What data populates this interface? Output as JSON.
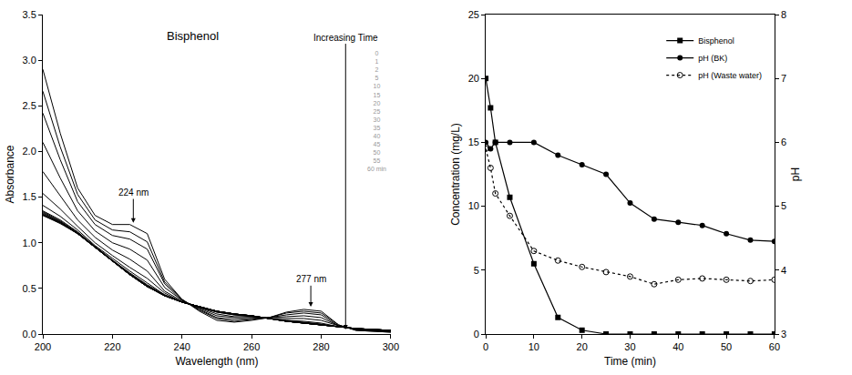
{
  "chart_data": [
    {
      "type": "line",
      "title": "Bisphenol",
      "x_label": "Wavelength (nm)",
      "y_label": "Absorbance",
      "x": [
        200,
        205,
        210,
        215,
        220,
        225,
        230,
        235,
        240,
        245,
        250,
        255,
        260,
        265,
        270,
        275,
        280,
        285,
        290,
        295,
        300
      ],
      "xlim": [
        200,
        300
      ],
      "xticks": [
        200,
        220,
        240,
        260,
        280,
        300
      ],
      "ylim": [
        0,
        3.5
      ],
      "yticks": [
        {
          "value": 0,
          "label": "0.0"
        },
        0.5,
        {
          "value": 1,
          "label": "1.0"
        },
        1.5,
        {
          "value": 2,
          "label": "2.0"
        },
        2.5,
        {
          "value": 3,
          "label": "3.0"
        },
        3.5
      ],
      "annotations": [
        {
          "text": "224 nm",
          "x": 226,
          "y": 1.22,
          "text_y": 1.55
        },
        {
          "text": "277 nm",
          "x": 277,
          "y": 0.3,
          "text_y": 0.6
        },
        {
          "text": "Increasing Time",
          "x": 287,
          "y": 0.05,
          "text_y": 3.25
        }
      ],
      "series": [
        {
          "name": "0",
          "color": "#000000",
          "values": [
            2.9,
            2.2,
            1.6,
            1.3,
            1.2,
            1.2,
            1.1,
            0.6,
            0.38,
            0.25,
            0.15,
            0.13,
            0.15,
            0.18,
            0.24,
            0.27,
            0.25,
            0.1,
            0.04,
            0.03,
            0.02
          ]
        },
        {
          "name": "1",
          "color": "#000000",
          "values": [
            2.66,
            2.05,
            1.53,
            1.25,
            1.14,
            1.12,
            1.01,
            0.57,
            0.38,
            0.26,
            0.17,
            0.14,
            0.16,
            0.18,
            0.23,
            0.25,
            0.23,
            0.1,
            0.04,
            0.03,
            0.02
          ]
        },
        {
          "name": "2",
          "color": "#000000",
          "values": [
            2.42,
            1.91,
            1.45,
            1.2,
            1.08,
            1.04,
            0.93,
            0.55,
            0.37,
            0.27,
            0.18,
            0.16,
            0.17,
            0.18,
            0.21,
            0.23,
            0.21,
            0.09,
            0.05,
            0.04,
            0.03
          ]
        },
        {
          "name": "5",
          "color": "#000000",
          "values": [
            2.1,
            1.71,
            1.35,
            1.13,
            1.0,
            0.93,
            0.81,
            0.51,
            0.37,
            0.28,
            0.2,
            0.18,
            0.18,
            0.18,
            0.19,
            0.2,
            0.18,
            0.09,
            0.05,
            0.04,
            0.03
          ]
        },
        {
          "name": "10",
          "color": "#000000",
          "values": [
            1.78,
            1.51,
            1.25,
            1.06,
            0.92,
            0.82,
            0.69,
            0.47,
            0.36,
            0.29,
            0.22,
            0.19,
            0.19,
            0.17,
            0.17,
            0.17,
            0.15,
            0.09,
            0.05,
            0.04,
            0.03
          ]
        },
        {
          "name": "15",
          "color": "#000000",
          "values": [
            1.54,
            1.37,
            1.18,
            1.0,
            0.86,
            0.73,
            0.61,
            0.45,
            0.35,
            0.29,
            0.24,
            0.21,
            0.19,
            0.17,
            0.15,
            0.14,
            0.12,
            0.08,
            0.06,
            0.05,
            0.04
          ]
        },
        {
          "name": "20",
          "color": "#000000",
          "values": [
            1.41,
            1.29,
            1.14,
            0.97,
            0.83,
            0.69,
            0.56,
            0.43,
            0.35,
            0.3,
            0.24,
            0.21,
            0.2,
            0.17,
            0.15,
            0.13,
            0.11,
            0.08,
            0.06,
            0.05,
            0.04
          ]
        },
        {
          "name": "25",
          "color": "#000000",
          "values": [
            1.35,
            1.25,
            1.12,
            0.96,
            0.81,
            0.67,
            0.54,
            0.43,
            0.35,
            0.3,
            0.25,
            0.22,
            0.2,
            0.17,
            0.14,
            0.12,
            0.1,
            0.08,
            0.06,
            0.05,
            0.04
          ]
        },
        {
          "name": "30",
          "color": "#000000",
          "values": [
            1.34,
            1.24,
            1.11,
            0.96,
            0.81,
            0.66,
            0.53,
            0.42,
            0.35,
            0.3,
            0.25,
            0.22,
            0.2,
            0.17,
            0.14,
            0.12,
            0.1,
            0.08,
            0.06,
            0.05,
            0.04
          ]
        },
        {
          "name": "35",
          "color": "#000000",
          "values": [
            1.33,
            1.23,
            1.11,
            0.95,
            0.8,
            0.66,
            0.53,
            0.42,
            0.35,
            0.3,
            0.25,
            0.22,
            0.2,
            0.17,
            0.14,
            0.12,
            0.1,
            0.08,
            0.06,
            0.05,
            0.04
          ]
        },
        {
          "name": "40",
          "color": "#000000",
          "values": [
            1.32,
            1.23,
            1.1,
            0.95,
            0.8,
            0.65,
            0.52,
            0.42,
            0.35,
            0.3,
            0.25,
            0.22,
            0.2,
            0.17,
            0.14,
            0.12,
            0.1,
            0.08,
            0.06,
            0.05,
            0.04
          ]
        },
        {
          "name": "45",
          "color": "#000000",
          "values": [
            1.31,
            1.22,
            1.1,
            0.95,
            0.8,
            0.65,
            0.52,
            0.42,
            0.35,
            0.3,
            0.25,
            0.22,
            0.2,
            0.17,
            0.14,
            0.12,
            0.1,
            0.08,
            0.06,
            0.05,
            0.04
          ]
        },
        {
          "name": "50",
          "color": "#000000",
          "values": [
            1.31,
            1.22,
            1.1,
            0.95,
            0.8,
            0.65,
            0.52,
            0.42,
            0.35,
            0.3,
            0.25,
            0.22,
            0.2,
            0.17,
            0.14,
            0.12,
            0.1,
            0.08,
            0.06,
            0.05,
            0.04
          ]
        },
        {
          "name": "55",
          "color": "#000000",
          "values": [
            1.3,
            1.21,
            1.1,
            0.95,
            0.8,
            0.65,
            0.52,
            0.42,
            0.35,
            0.3,
            0.25,
            0.22,
            0.2,
            0.17,
            0.14,
            0.12,
            0.1,
            0.08,
            0.06,
            0.05,
            0.04
          ]
        },
        {
          "name": "60 min",
          "color": "#000000",
          "values": [
            1.3,
            1.22,
            1.1,
            0.95,
            0.8,
            0.65,
            0.52,
            0.42,
            0.35,
            0.3,
            0.25,
            0.22,
            0.2,
            0.17,
            0.14,
            0.12,
            0.1,
            0.08,
            0.06,
            0.05,
            0.04
          ]
        }
      ]
    },
    {
      "type": "line",
      "x_label": "Time (min)",
      "y_label": "Concentration (mg/L)",
      "y2_label": "pH",
      "x": [
        0,
        1,
        2,
        5,
        10,
        15,
        20,
        25,
        30,
        35,
        40,
        45,
        50,
        55,
        60
      ],
      "xlim": [
        0,
        60
      ],
      "xticks": [
        0,
        10,
        20,
        30,
        40,
        50,
        60
      ],
      "ylim": [
        0,
        25
      ],
      "yticks": [
        0,
        5,
        10,
        15,
        20,
        25
      ],
      "y2lim": [
        3,
        8
      ],
      "y2ticks": [
        3,
        4,
        5,
        6,
        7,
        8
      ],
      "legend": "upper right",
      "series": [
        {
          "name": "Bisphenol",
          "color": "#000000",
          "marker": "square",
          "line_style": "solid",
          "values": [
            20,
            17.7,
            15,
            10.7,
            5.5,
            1.3,
            0.3,
            0,
            0,
            0,
            0,
            0,
            0,
            0,
            0
          ]
        },
        {
          "name": "pH (BK)",
          "color": "#000000",
          "marker": "circle",
          "line_style": "solid",
          "axis": "y2",
          "values": [
            6.0,
            5.9,
            6.0,
            6.0,
            6.0,
            5.8,
            5.65,
            5.5,
            5.05,
            4.8,
            4.75,
            4.7,
            4.57,
            4.47,
            4.45
          ]
        },
        {
          "name": "pH (Waste water)",
          "color": "#000000",
          "marker": "circle-open",
          "line_style": "dot",
          "axis": "y2",
          "values": [
            5.9,
            5.6,
            5.2,
            4.85,
            4.3,
            4.15,
            4.05,
            3.97,
            3.9,
            3.78,
            3.85,
            3.87,
            3.85,
            3.83,
            3.85
          ]
        }
      ]
    }
  ]
}
